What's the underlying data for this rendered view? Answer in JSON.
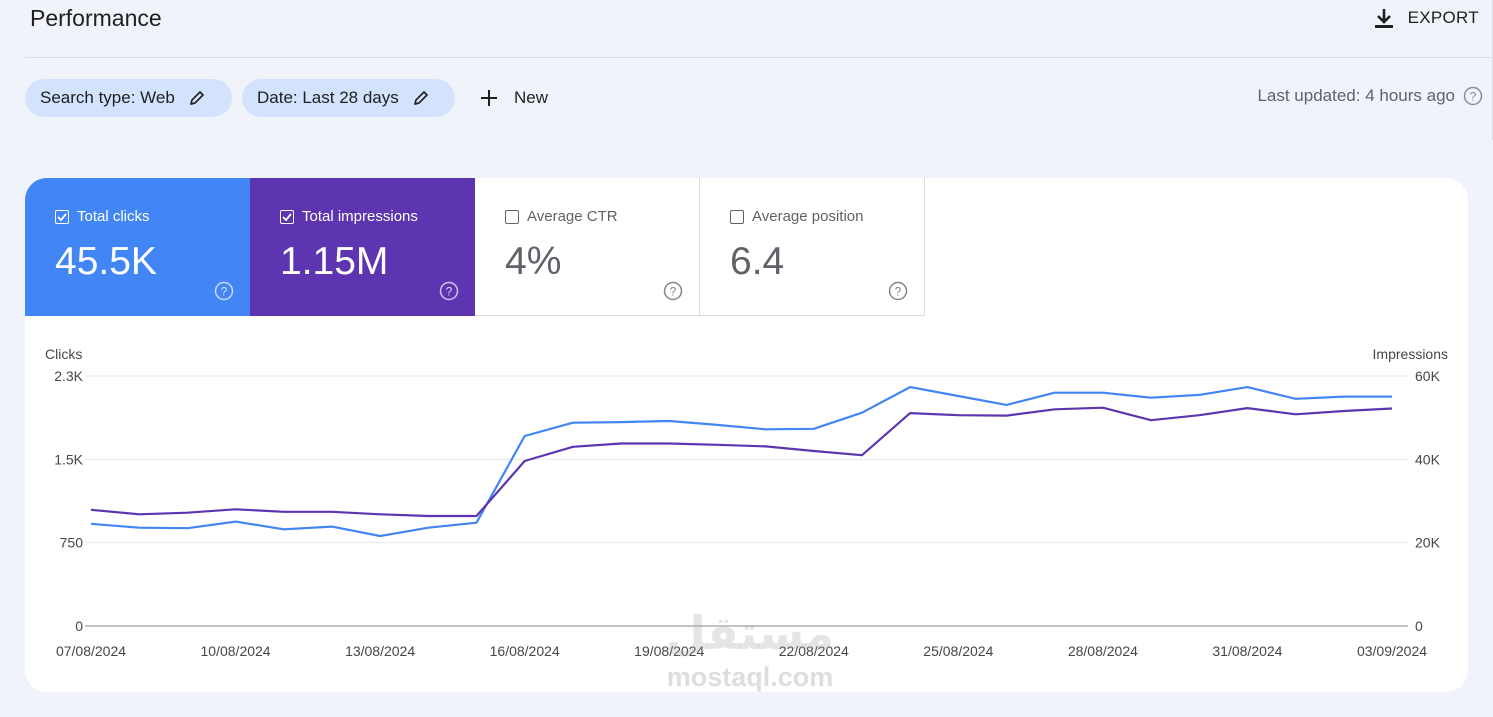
{
  "header": {
    "title": "Performance",
    "export_label": "EXPORT"
  },
  "filters": {
    "search_type": "Search type: Web",
    "date": "Date: Last 28 days",
    "new_label": "New",
    "last_updated": "Last updated: 4 hours ago"
  },
  "metrics": [
    {
      "label": "Total clicks",
      "value": "45.5K",
      "checked": true,
      "color": "#4285f4"
    },
    {
      "label": "Total impressions",
      "value": "1.15M",
      "checked": true,
      "color": "#5e35b1"
    },
    {
      "label": "Average CTR",
      "value": "4%",
      "checked": false,
      "color": "#ffffff"
    },
    {
      "label": "Average position",
      "value": "6.4",
      "checked": false,
      "color": "#ffffff"
    }
  ],
  "watermark": {
    "mark": "مستقل",
    "text": "mostaql.com"
  },
  "chart_data": {
    "type": "line",
    "ylabel_left": "Clicks",
    "ylabel_right": "Impressions",
    "left_ticks": [
      "0",
      "750",
      "1.5K",
      "2.3K"
    ],
    "right_ticks": [
      "0",
      "20K",
      "40K",
      "60K"
    ],
    "ylim_left": [
      0,
      2250
    ],
    "ylim_right": [
      0,
      60000
    ],
    "x_tick_labels": [
      "07/08/2024",
      "10/08/2024",
      "13/08/2024",
      "16/08/2024",
      "19/08/2024",
      "22/08/2024",
      "25/08/2024",
      "28/08/2024",
      "31/08/2024",
      "03/09/2024"
    ],
    "x": [
      "07/08/2024",
      "08/08/2024",
      "09/08/2024",
      "10/08/2024",
      "11/08/2024",
      "12/08/2024",
      "13/08/2024",
      "14/08/2024",
      "15/08/2024",
      "16/08/2024",
      "17/08/2024",
      "18/08/2024",
      "19/08/2024",
      "20/08/2024",
      "21/08/2024",
      "22/08/2024",
      "23/08/2024",
      "24/08/2024",
      "25/08/2024",
      "26/08/2024",
      "27/08/2024",
      "28/08/2024",
      "29/08/2024",
      "30/08/2024",
      "31/08/2024",
      "01/09/2024",
      "02/09/2024",
      "03/09/2024"
    ],
    "grid": true,
    "series": [
      {
        "name": "Total clicks",
        "axis": "left",
        "color": "#4285f4",
        "values": [
          920,
          885,
          880,
          940,
          870,
          895,
          810,
          885,
          930,
          1710,
          1830,
          1835,
          1845,
          1810,
          1770,
          1775,
          1920,
          2150,
          2070,
          1990,
          2100,
          2100,
          2055,
          2080,
          2150,
          2045,
          2065,
          2065
        ]
      },
      {
        "name": "Total impressions",
        "axis": "right",
        "color": "#5e35b1",
        "values": [
          27900,
          26800,
          27200,
          28000,
          27400,
          27400,
          26800,
          26400,
          26400,
          39600,
          43000,
          43800,
          43800,
          43500,
          43100,
          42000,
          41000,
          51100,
          50600,
          50500,
          52000,
          52400,
          49400,
          50600,
          52300,
          50800,
          51600,
          52200
        ]
      }
    ]
  }
}
